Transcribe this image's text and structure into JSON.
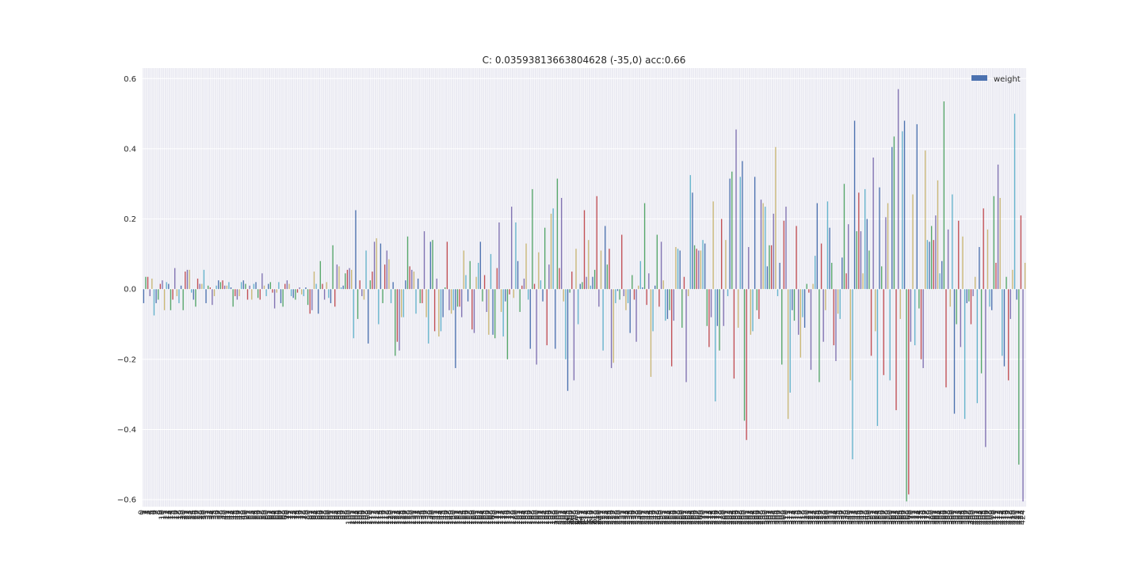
{
  "chart_data": {
    "type": "bar",
    "title": "C: 0.03593813663804628 (-35,0) acc:0.66",
    "xlabel": "features",
    "ylabel": "",
    "ylim": [
      -0.62,
      0.63
    ],
    "yticks": [
      0.6,
      0.4,
      0.2,
      0.0,
      -0.2,
      -0.4,
      -0.6
    ],
    "ytick_labels": [
      "0.6",
      "0.4",
      "0.2",
      "0.0",
      "−0.2",
      "−0.4",
      "−0.6"
    ],
    "grid": true,
    "legend": {
      "placement": "top-right",
      "entries": [
        "weight"
      ]
    },
    "colors": [
      "#4C72B0",
      "#55A868",
      "#C44E52",
      "#8172B2",
      "#CCB974",
      "#64B5CD"
    ],
    "background": "#EAEAF2",
    "series": [
      {
        "name": "weight",
        "values": [
          -0.04,
          0.035,
          0.035,
          -0.02,
          0.03,
          -0.075,
          -0.04,
          -0.03,
          0.015,
          0.025,
          -0.06,
          0.02,
          0.015,
          -0.06,
          -0.03,
          0.06,
          -0.02,
          -0.04,
          0.01,
          -0.06,
          0.05,
          0.055,
          0.055,
          -0.01,
          -0.03,
          -0.05,
          0.03,
          0.015,
          0.015,
          0.055,
          -0.04,
          0.01,
          0.005,
          -0.045,
          -0.02,
          0.01,
          0.025,
          0.02,
          0.025,
          0.01,
          0.01,
          0.02,
          0.005,
          -0.05,
          -0.02,
          -0.03,
          -0.02,
          0.02,
          0.025,
          0.015,
          -0.03,
          0.01,
          -0.03,
          0.015,
          0.02,
          -0.025,
          -0.03,
          0.045,
          0.01,
          -0.02,
          0.015,
          0.02,
          -0.01,
          -0.055,
          -0.01,
          0.02,
          -0.04,
          -0.05,
          0.015,
          0.025,
          0.015,
          -0.02,
          -0.025,
          -0.03,
          -0.01,
          0.005,
          -0.015,
          -0.02,
          0.005,
          -0.045,
          -0.07,
          -0.06,
          0.05,
          0.015,
          -0.07,
          0.08,
          0.015,
          -0.03,
          0.02,
          -0.025,
          -0.04,
          0.125,
          -0.05,
          0.07,
          0.065,
          0.005,
          0.01,
          0.045,
          0.055,
          0.06,
          0.055,
          -0.14,
          0.225,
          -0.085,
          0.025,
          -0.02,
          -0.03,
          0.11,
          -0.155,
          0.025,
          0.05,
          0.135,
          0.145,
          -0.1,
          0.13,
          -0.04,
          0.07,
          0.11,
          0.085,
          -0.04,
          0.02,
          -0.19,
          -0.15,
          -0.175,
          -0.08,
          -0.08,
          0.025,
          0.15,
          0.065,
          0.055,
          0.05,
          -0.07,
          0.03,
          -0.04,
          -0.04,
          0.165,
          -0.08,
          -0.155,
          0.135,
          0.14,
          -0.12,
          0.03,
          -0.135,
          -0.12,
          -0.08,
          0.005,
          0.135,
          -0.06,
          -0.07,
          -0.06,
          -0.225,
          -0.05,
          -0.05,
          -0.08,
          0.11,
          0.04,
          -0.035,
          0.08,
          -0.115,
          -0.125,
          0.035,
          0.075,
          0.135,
          -0.035,
          0.04,
          -0.065,
          -0.13,
          0.1,
          -0.13,
          -0.14,
          0.06,
          0.19,
          -0.065,
          -0.135,
          -0.035,
          -0.2,
          -0.015,
          0.235,
          -0.025,
          0.19,
          0.08,
          -0.065,
          0.01,
          0.03,
          0.13,
          -0.03,
          -0.17,
          0.285,
          0.015,
          -0.215,
          0.105,
          0.025,
          -0.035,
          0.175,
          -0.16,
          0.07,
          0.215,
          0.23,
          -0.17,
          0.315,
          0.06,
          0.26,
          -0.035,
          -0.2,
          -0.29,
          -0.01,
          0.05,
          -0.26,
          0.115,
          -0.1,
          0.015,
          0.02,
          0.225,
          0.035,
          0.14,
          0.01,
          0.035,
          0.055,
          0.265,
          -0.05,
          0.11,
          -0.175,
          0.18,
          0.07,
          0.115,
          -0.225,
          -0.21,
          -0.04,
          -0.005,
          -0.03,
          0.155,
          -0.02,
          -0.06,
          -0.04,
          -0.125,
          0.04,
          -0.03,
          -0.15,
          0.01,
          0.08,
          0.005,
          0.245,
          -0.045,
          0.045,
          -0.25,
          -0.12,
          0.01,
          0.155,
          -0.05,
          0.135,
          0.025,
          -0.09,
          -0.085,
          -0.06,
          -0.22,
          -0.09,
          0.12,
          0.115,
          0.11,
          -0.11,
          0.035,
          -0.265,
          -0.02,
          0.325,
          0.275,
          0.125,
          0.115,
          0.11,
          0.11,
          0.14,
          0.13,
          -0.105,
          -0.165,
          -0.08,
          0.25,
          -0.32,
          -0.105,
          -0.175,
          0.2,
          -0.105,
          0.14,
          -0.02,
          0.315,
          0.335,
          -0.255,
          0.455,
          -0.11,
          0.32,
          0.365,
          -0.375,
          -0.43,
          0.12,
          -0.13,
          -0.12,
          0.32,
          -0.06,
          -0.085,
          0.255,
          0.245,
          0.235,
          0.065,
          0.125,
          0.125,
          0.215,
          0.405,
          -0.02,
          0.075,
          -0.215,
          0.195,
          0.235,
          -0.37,
          -0.295,
          -0.06,
          -0.09,
          0.18,
          -0.13,
          -0.195,
          -0.08,
          -0.11,
          0.015,
          -0.01,
          -0.23,
          0.015,
          0.095,
          0.245,
          -0.265,
          0.13,
          -0.15,
          -0.06,
          0.25,
          0.175,
          0.075,
          -0.16,
          -0.205,
          -0.07,
          -0.085,
          0.09,
          0.3,
          0.045,
          0.185,
          -0.26,
          -0.485,
          0.48,
          0.165,
          0.275,
          0.165,
          0.045,
          0.285,
          0.2,
          0.11,
          -0.19,
          0.375,
          -0.12,
          -0.39,
          0.29,
          0.065,
          -0.245,
          0.205,
          0.245,
          -0.26,
          0.405,
          0.435,
          -0.345,
          0.57,
          -0.085,
          0.45,
          0.48,
          -0.605,
          -0.585,
          -0.15,
          0.27,
          -0.16,
          0.47,
          -0.055,
          -0.2,
          -0.225,
          0.395,
          0.14,
          0.135,
          0.18,
          0.14,
          0.21,
          0.31,
          0.045,
          0.08,
          0.535,
          -0.28,
          0.17,
          -0.05,
          0.27,
          -0.355,
          -0.1,
          0.195,
          -0.165,
          0.15,
          -0.37,
          -0.04,
          -0.035,
          -0.1,
          -0.02,
          0.035,
          -0.325,
          0.12,
          -0.24,
          0.23,
          -0.45,
          0.17,
          -0.05,
          -0.06,
          0.265,
          0.075,
          0.355,
          0.26,
          -0.19,
          -0.22,
          0.035,
          -0.26,
          -0.085,
          0.055,
          0.5,
          -0.03,
          -0.5,
          0.21,
          -0.605,
          0.075
        ]
      }
    ]
  }
}
